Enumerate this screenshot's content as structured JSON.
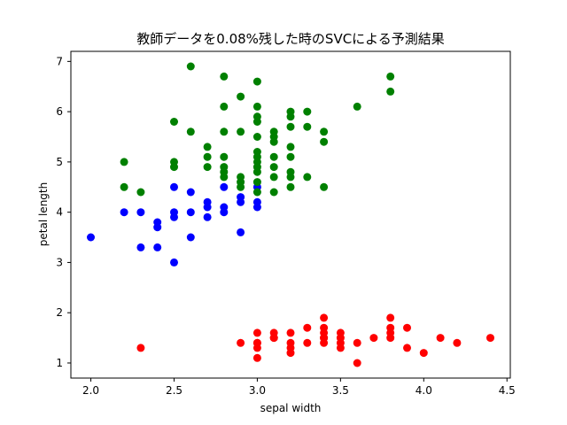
{
  "chart_data": {
    "type": "scatter",
    "title": "教師データを0.08%残した時のSVCによる予測結果",
    "xlabel": "sepal width",
    "ylabel": "petal length",
    "xlim": [
      1.88,
      4.52
    ],
    "ylim": [
      0.7,
      7.2
    ],
    "xticks": [
      "2.0",
      "2.5",
      "3.0",
      "3.5",
      "4.0",
      "4.5"
    ],
    "yticks": [
      "1",
      "2",
      "3",
      "4",
      "5",
      "6",
      "7"
    ],
    "grid": false,
    "legend": "none",
    "series": [
      {
        "color": "#ff0000",
        "points": [
          [
            2.3,
            1.3
          ],
          [
            2.9,
            1.4
          ],
          [
            3.0,
            1.1
          ],
          [
            3.0,
            1.3
          ],
          [
            3.0,
            1.4
          ],
          [
            3.0,
            1.4
          ],
          [
            3.0,
            1.6
          ],
          [
            3.1,
            1.5
          ],
          [
            3.1,
            1.5
          ],
          [
            3.1,
            1.6
          ],
          [
            3.2,
            1.2
          ],
          [
            3.2,
            1.3
          ],
          [
            3.2,
            1.4
          ],
          [
            3.2,
            1.6
          ],
          [
            3.3,
            1.4
          ],
          [
            3.3,
            1.7
          ],
          [
            3.4,
            1.4
          ],
          [
            3.4,
            1.5
          ],
          [
            3.4,
            1.5
          ],
          [
            3.4,
            1.6
          ],
          [
            3.4,
            1.7
          ],
          [
            3.4,
            1.9
          ],
          [
            3.5,
            1.3
          ],
          [
            3.5,
            1.4
          ],
          [
            3.5,
            1.5
          ],
          [
            3.5,
            1.6
          ],
          [
            3.6,
            1.0
          ],
          [
            3.6,
            1.4
          ],
          [
            3.7,
            1.5
          ],
          [
            3.8,
            1.5
          ],
          [
            3.8,
            1.6
          ],
          [
            3.8,
            1.7
          ],
          [
            3.8,
            1.9
          ],
          [
            3.9,
            1.3
          ],
          [
            3.9,
            1.7
          ],
          [
            4.0,
            1.2
          ],
          [
            4.1,
            1.5
          ],
          [
            4.2,
            1.4
          ],
          [
            4.4,
            1.5
          ]
        ]
      },
      {
        "color": "#0000ff",
        "points": [
          [
            2.0,
            3.5
          ],
          [
            2.2,
            4.0
          ],
          [
            2.3,
            3.3
          ],
          [
            2.3,
            4.0
          ],
          [
            2.4,
            3.3
          ],
          [
            2.4,
            3.7
          ],
          [
            2.4,
            3.8
          ],
          [
            2.5,
            3.0
          ],
          [
            2.5,
            3.9
          ],
          [
            2.5,
            4.0
          ],
          [
            2.5,
            4.5
          ],
          [
            2.6,
            3.5
          ],
          [
            2.6,
            4.0
          ],
          [
            2.6,
            4.4
          ],
          [
            2.7,
            3.9
          ],
          [
            2.7,
            4.1
          ],
          [
            2.7,
            4.2
          ],
          [
            2.8,
            4.0
          ],
          [
            2.8,
            4.1
          ],
          [
            2.8,
            4.5
          ],
          [
            2.9,
            3.6
          ],
          [
            2.9,
            4.2
          ],
          [
            2.9,
            4.3
          ],
          [
            3.0,
            4.1
          ],
          [
            3.0,
            4.2
          ],
          [
            3.0,
            4.5
          ]
        ]
      },
      {
        "color": "#008000",
        "points": [
          [
            2.2,
            4.5
          ],
          [
            2.2,
            5.0
          ],
          [
            2.3,
            4.4
          ],
          [
            2.5,
            4.9
          ],
          [
            2.5,
            5.0
          ],
          [
            2.5,
            5.8
          ],
          [
            2.6,
            5.6
          ],
          [
            2.6,
            6.9
          ],
          [
            2.7,
            4.9
          ],
          [
            2.7,
            5.1
          ],
          [
            2.7,
            5.3
          ],
          [
            2.8,
            4.7
          ],
          [
            2.8,
            4.8
          ],
          [
            2.8,
            4.9
          ],
          [
            2.8,
            5.1
          ],
          [
            2.8,
            5.6
          ],
          [
            2.8,
            6.1
          ],
          [
            2.8,
            6.7
          ],
          [
            2.9,
            4.5
          ],
          [
            2.9,
            4.6
          ],
          [
            2.9,
            4.7
          ],
          [
            2.9,
            5.6
          ],
          [
            2.9,
            6.3
          ],
          [
            3.0,
            4.4
          ],
          [
            3.0,
            4.6
          ],
          [
            3.0,
            4.8
          ],
          [
            3.0,
            4.9
          ],
          [
            3.0,
            5.0
          ],
          [
            3.0,
            5.1
          ],
          [
            3.0,
            5.2
          ],
          [
            3.0,
            5.5
          ],
          [
            3.0,
            5.8
          ],
          [
            3.0,
            5.9
          ],
          [
            3.0,
            6.1
          ],
          [
            3.0,
            6.6
          ],
          [
            3.1,
            4.4
          ],
          [
            3.1,
            4.7
          ],
          [
            3.1,
            4.9
          ],
          [
            3.1,
            5.1
          ],
          [
            3.1,
            5.4
          ],
          [
            3.1,
            5.5
          ],
          [
            3.1,
            5.6
          ],
          [
            3.2,
            4.5
          ],
          [
            3.2,
            4.7
          ],
          [
            3.2,
            4.8
          ],
          [
            3.2,
            5.1
          ],
          [
            3.2,
            5.3
          ],
          [
            3.2,
            5.7
          ],
          [
            3.2,
            5.9
          ],
          [
            3.2,
            6.0
          ],
          [
            3.3,
            4.7
          ],
          [
            3.3,
            5.7
          ],
          [
            3.3,
            6.0
          ],
          [
            3.4,
            4.5
          ],
          [
            3.4,
            5.4
          ],
          [
            3.4,
            5.6
          ],
          [
            3.6,
            6.1
          ],
          [
            3.8,
            6.4
          ],
          [
            3.8,
            6.7
          ]
        ]
      }
    ]
  }
}
